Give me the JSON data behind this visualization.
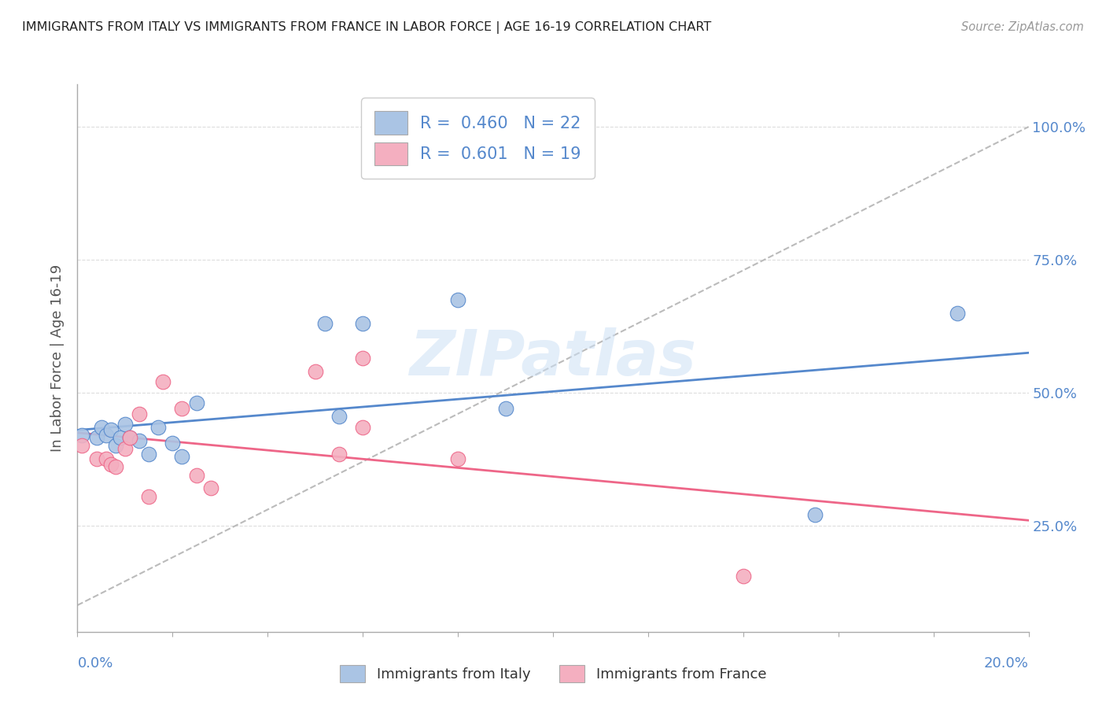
{
  "title": "IMMIGRANTS FROM ITALY VS IMMIGRANTS FROM FRANCE IN LABOR FORCE | AGE 16-19 CORRELATION CHART",
  "source": "Source: ZipAtlas.com",
  "ylabel": "In Labor Force | Age 16-19",
  "ytick_vals": [
    0.25,
    0.5,
    0.75,
    1.0
  ],
  "ytick_labels": [
    "25.0%",
    "50.0%",
    "75.0%",
    "100.0%"
  ],
  "watermark": "ZIPatlas",
  "italy_color": "#aac4e4",
  "france_color": "#f4afc0",
  "italy_line_color": "#5588cc",
  "france_line_color": "#ee6688",
  "diagonal_color": "#bbbbbb",
  "grid_color": "#dddddd",
  "R_italy": 0.46,
  "N_italy": 22,
  "R_france": 0.601,
  "N_france": 19,
  "italy_x": [
    0.001,
    0.004,
    0.005,
    0.006,
    0.007,
    0.008,
    0.009,
    0.01,
    0.011,
    0.013,
    0.015,
    0.017,
    0.02,
    0.022,
    0.025,
    0.052,
    0.055,
    0.06,
    0.08,
    0.09,
    0.155,
    0.185
  ],
  "italy_y": [
    0.42,
    0.415,
    0.435,
    0.42,
    0.43,
    0.4,
    0.415,
    0.44,
    0.415,
    0.41,
    0.385,
    0.435,
    0.405,
    0.38,
    0.48,
    0.63,
    0.455,
    0.63,
    0.675,
    0.47,
    0.27,
    0.65
  ],
  "france_x": [
    0.001,
    0.004,
    0.006,
    0.007,
    0.008,
    0.01,
    0.011,
    0.013,
    0.015,
    0.018,
    0.022,
    0.025,
    0.028,
    0.05,
    0.055,
    0.06,
    0.06,
    0.08,
    0.14
  ],
  "france_y": [
    0.4,
    0.375,
    0.375,
    0.365,
    0.36,
    0.395,
    0.415,
    0.46,
    0.305,
    0.52,
    0.47,
    0.345,
    0.32,
    0.54,
    0.385,
    0.435,
    0.565,
    0.375,
    0.155
  ],
  "xlim": [
    0.0,
    0.2
  ],
  "ylim": [
    0.05,
    1.08
  ],
  "figsize": [
    14.06,
    8.92
  ],
  "dpi": 100
}
